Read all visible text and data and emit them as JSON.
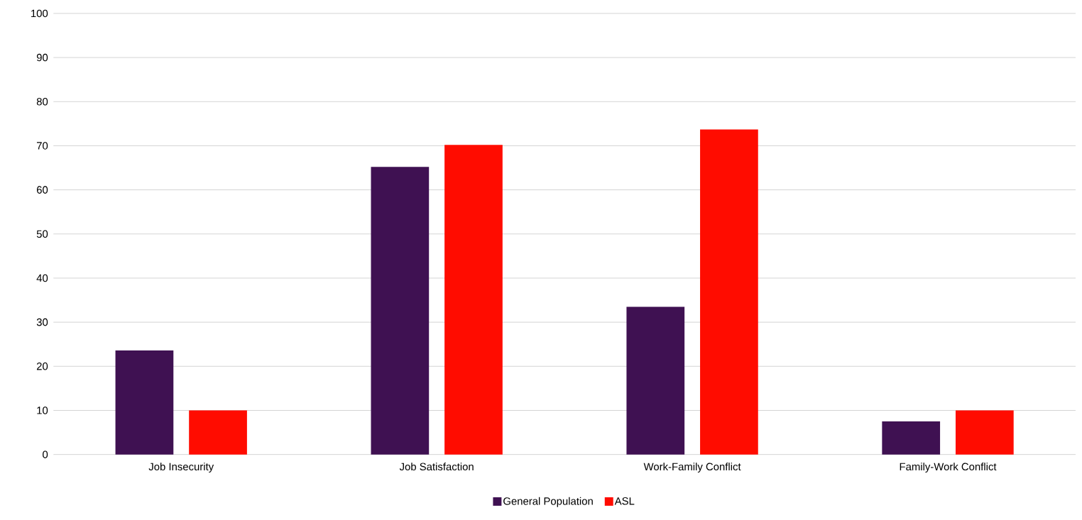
{
  "chart_data": {
    "type": "bar",
    "categories": [
      "Job Insecurity",
      "Job Satisfaction",
      "Work-Family Conflict",
      "Family-Work Conflict"
    ],
    "series": [
      {
        "name": "General Population",
        "color": "#3f1152",
        "values": [
          23.6,
          65.2,
          33.5,
          7.5
        ]
      },
      {
        "name": "ASL",
        "color": "#ff0c00",
        "values": [
          10,
          70.2,
          73.7,
          10
        ]
      }
    ],
    "ylim": [
      0,
      100
    ],
    "yticks": [
      0,
      10,
      20,
      30,
      40,
      50,
      60,
      70,
      80,
      90,
      100
    ],
    "grid": "y",
    "legend": "bottom"
  }
}
